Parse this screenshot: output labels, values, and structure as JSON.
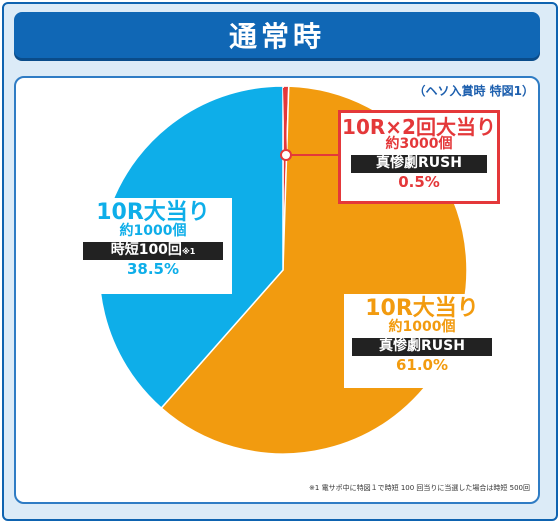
{
  "header": {
    "title": "通常時"
  },
  "chart_data": {
    "type": "pie",
    "subtitle": "（ヘソ入賞時 特図1）",
    "slices": [
      {
        "label": "10R×2回大当り",
        "detail": "約3000個",
        "mode": "真惨劇RUSH",
        "value": 0.5,
        "value_label": "0.5%",
        "color": "#e4383a"
      },
      {
        "label": "10R大当り",
        "detail": "約1000個",
        "mode": "真惨劇RUSH",
        "value": 61.0,
        "value_label": "61.0%",
        "color": "#f29b0f"
      },
      {
        "label": "10R大当り",
        "detail": "約1000個",
        "mode": "時短100回",
        "mode_note": "※1",
        "value": 38.5,
        "value_label": "38.5%",
        "color": "#0eaee9"
      }
    ],
    "footnote": "※1 電サポ中に特図１で時短 100 回当りに当選した場合は時短 500回"
  }
}
